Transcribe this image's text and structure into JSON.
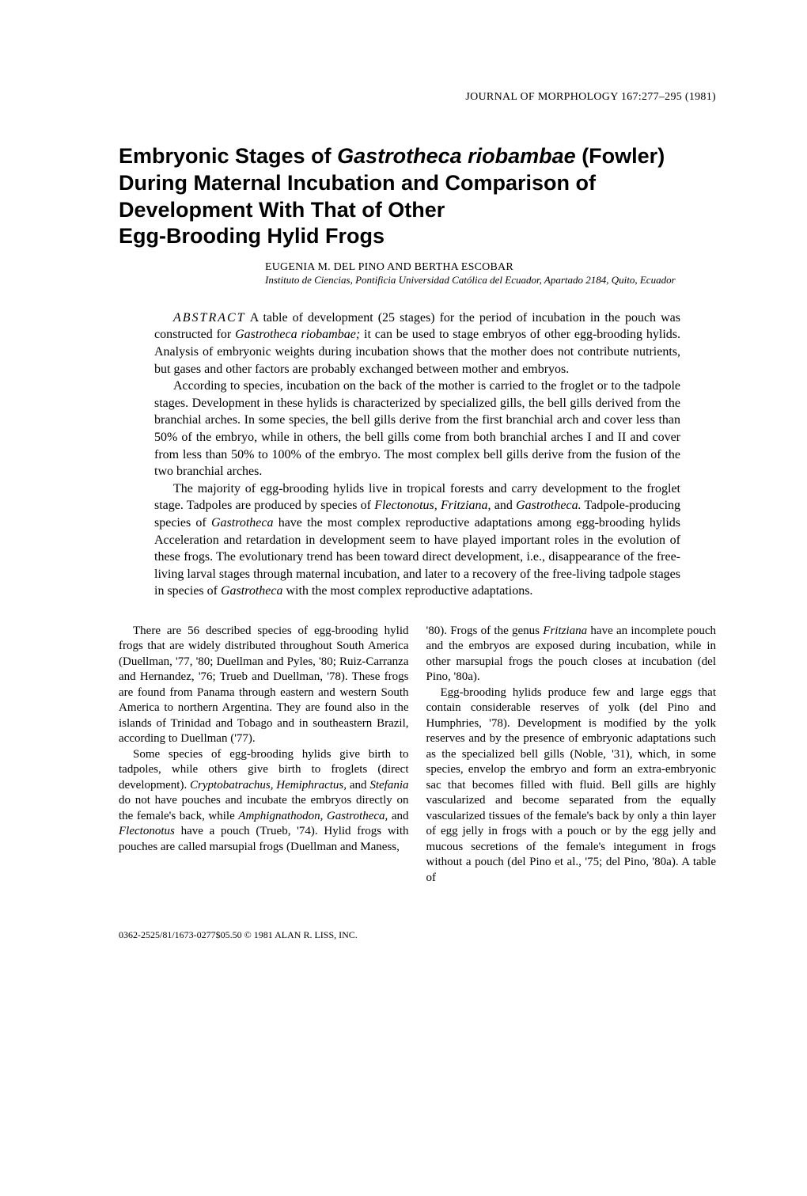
{
  "running_head": "JOURNAL OF MORPHOLOGY 167:277–295 (1981)",
  "title_line1_a": "Embryonic Stages of ",
  "title_line1_b_italic": "Gastrotheca riobambae",
  "title_line1_c": " (Fowler)",
  "title_line2": "During Maternal Incubation and Comparison of",
  "title_line3": "Development With That of Other",
  "title_line4": "Egg-Brooding Hylid Frogs",
  "authors": "EUGENIA M. DEL PINO AND BERTHA ESCOBAR",
  "affiliation": "Instituto de Ciencias, Pontificia Universidad Católica del Ecuador, Apartado 2184, Quito, Ecuador",
  "abstract_label": "ABSTRACT",
  "abstract_p1_a": "    A table of development (25 stages) for the period of incubation in the pouch was constructed for ",
  "abstract_p1_b_italic": "Gastrotheca riobambae;",
  "abstract_p1_c": " it can be used to stage embryos of other egg-brooding hylids. Analysis of embryonic weights during incubation shows that the mother does not contribute nutrients, but gases and other factors are probably exchanged between mother and embryos.",
  "abstract_p2": "According to species, incubation on the back of the mother is carried to the froglet or to the tadpole stages. Development in these hylids is characterized by specialized gills, the bell gills derived from the branchial arches. In some species, the bell gills derive from the first branchial arch and cover less than 50% of the embryo, while in others, the bell gills come from both branchial arches I and II and cover from less than 50% to 100% of the embryo. The most complex bell gills derive from the fusion of the two branchial arches.",
  "abstract_p3_a": "The majority of egg-brooding hylids live in tropical forests and carry development to the froglet stage. Tadpoles are produced by species of ",
  "abstract_p3_b_italic": "Flectonotus, Fritziana,",
  "abstract_p3_c": " and ",
  "abstract_p3_d_italic": "Gastrotheca.",
  "abstract_p3_e": " Tadpole-producing species of ",
  "abstract_p3_f_italic": "Gastrotheca",
  "abstract_p3_g": " have the most complex reproductive adaptations among egg-brooding hylids Acceleration and retardation in development seem to have played important roles in the evolution of these frogs. The evolutionary trend has been toward direct development, i.e., disappearance of the free-living larval stages through maternal incubation, and later to a recovery of the free-living tadpole stages in species of ",
  "abstract_p3_h_italic": "Gastrotheca",
  "abstract_p3_i": " with the most complex reproductive adaptations.",
  "col1_p1": "There are 56 described species of egg-brooding hylid frogs that are widely distributed throughout South America (Duellman, '77, '80; Duellman and Pyles, '80; Ruiz-Carranza and Hernandez, '76; Trueb and Duellman, '78). These frogs are found from Panama through eastern and western South America to northern Argentina. They are found also in the islands of Trinidad and Tobago and in southeastern Brazil, according to Duellman ('77).",
  "col1_p2_a": "Some species of egg-brooding hylids give birth to tadpoles, while others give birth to froglets (direct development). ",
  "col1_p2_b_italic": "Cryptobatrachus, Hemiphractus,",
  "col1_p2_c": " and ",
  "col1_p2_d_italic": "Stefania",
  "col1_p2_e": " do not have pouches and incubate the embryos directly on the female's back, while ",
  "col1_p2_f_italic": "Amphignathodon, Gastrotheca,",
  "col1_p2_g": " and ",
  "col1_p2_h_italic": "Flectonotus",
  "col1_p2_i": " have a pouch (Trueb, '74). Hylid frogs with pouches are called marsupial frogs (Duellman and Maness,",
  "col2_p1_a": "'80). Frogs of the genus ",
  "col2_p1_b_italic": "Fritziana",
  "col2_p1_c": " have an incomplete pouch and the embryos are exposed during incubation, while in other marsupial frogs the pouch closes at incubation (del Pino, '80a).",
  "col2_p2": "Egg-brooding hylids produce few and large eggs that contain considerable reserves of yolk (del Pino and Humphries, '78). Development is modified by the yolk reserves and by the presence of embryonic adaptations such as the specialized bell gills (Noble, '31), which, in some species, envelop the embryo and form an extra-embryonic sac that becomes filled with fluid. Bell gills are highly vascularized and become separated from the equally vascularized tissues of the female's back by only a thin layer of egg jelly in frogs with a pouch or by the egg jelly and mucous secretions of the female's integument in frogs without a pouch (del Pino et al., '75; del Pino, '80a). A table of",
  "footer": "0362-2525/81/1673-0277$05.50 © 1981 ALAN R. LISS, INC."
}
